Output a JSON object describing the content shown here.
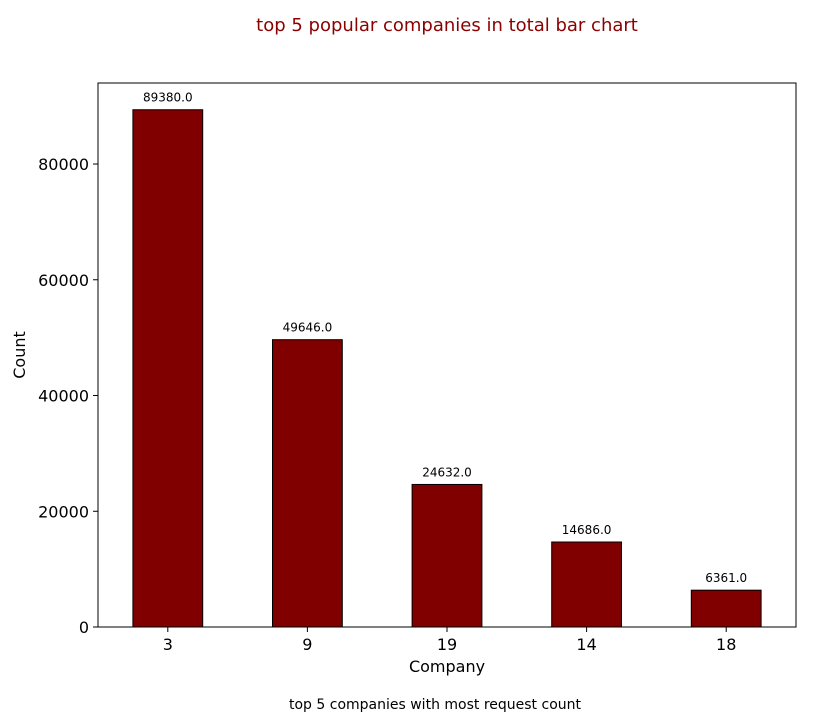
{
  "chart_data": {
    "type": "bar",
    "title": "top 5 popular companies in total bar chart",
    "xlabel": "Company",
    "ylabel": "Count",
    "caption": "top 5 companies with most request count",
    "categories": [
      "3",
      "9",
      "19",
      "14",
      "18"
    ],
    "values": [
      89380,
      49646,
      24632,
      14686,
      6361
    ],
    "value_labels": [
      "89380.0",
      "49646.0",
      "24632.0",
      "14686.0",
      "6361.0"
    ],
    "ylim": [
      0,
      94000
    ],
    "yticks": [
      0,
      20000,
      40000,
      60000,
      80000
    ],
    "ytick_labels": [
      "0",
      "20000",
      "40000",
      "60000",
      "80000"
    ],
    "grid": false,
    "colors": {
      "bar_fill": "#800000",
      "bar_edge": "#000000",
      "title": "#8b0000",
      "text": "#000000",
      "axes": "#000000"
    }
  }
}
